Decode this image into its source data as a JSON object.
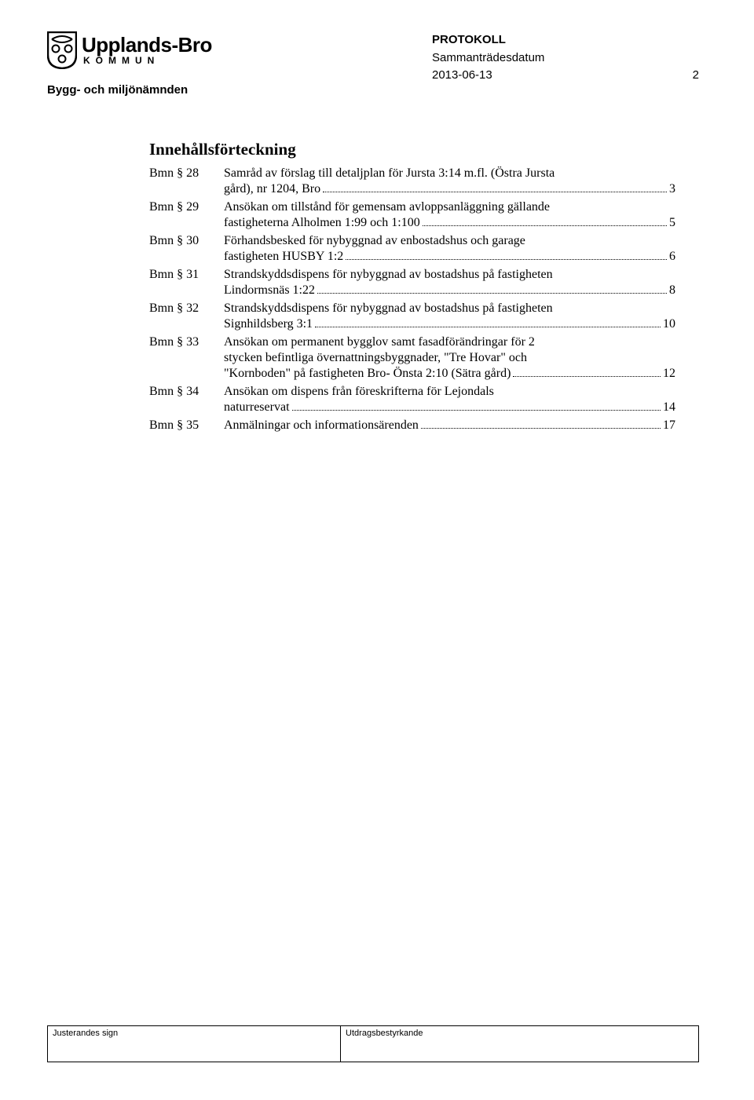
{
  "header": {
    "org_line1": "Upplands-Bro",
    "org_line2": "KOMMUN",
    "department": "Bygg- och miljönämnden",
    "protokoll": "PROTOKOLL",
    "meeting_label": "Sammanträdesdatum",
    "date": "2013-06-13",
    "page_no": "2"
  },
  "toc": {
    "title": "Innehållsförteckning",
    "rows": [
      {
        "label": "Bmn § 28",
        "lines": [
          {
            "text": "Samråd av förslag till detaljplan för Jursta 3:14 m.fl. (Östra Jursta",
            "leader": false,
            "page": ""
          },
          {
            "text": "gård), nr 1204, Bro",
            "leader": true,
            "page": "3"
          }
        ]
      },
      {
        "label": "Bmn § 29",
        "lines": [
          {
            "text": "Ansökan om tillstånd för gemensam avloppsanläggning gällande",
            "leader": false,
            "page": ""
          },
          {
            "text": "fastigheterna Alholmen 1:99 och 1:100",
            "leader": true,
            "page": "5"
          }
        ]
      },
      {
        "label": "Bmn § 30",
        "lines": [
          {
            "text": "Förhandsbesked för nybyggnad av enbostadshus och garage",
            "leader": false,
            "page": ""
          },
          {
            "text": "fastigheten HUSBY 1:2",
            "leader": true,
            "page": "6"
          }
        ]
      },
      {
        "label": "Bmn § 31",
        "lines": [
          {
            "text": "Strandskyddsdispens för nybyggnad av bostadshus på fastigheten",
            "leader": false,
            "page": ""
          },
          {
            "text": "Lindormsnäs 1:22",
            "leader": true,
            "page": "8"
          }
        ]
      },
      {
        "label": "Bmn § 32",
        "lines": [
          {
            "text": "Strandskyddsdispens för nybyggnad av bostadshus på fastigheten",
            "leader": false,
            "page": ""
          },
          {
            "text": "Signhildsberg 3:1",
            "leader": true,
            "page": "10"
          }
        ]
      },
      {
        "label": "Bmn § 33",
        "lines": [
          {
            "text": "Ansökan om permanent bygglov samt fasadförändringar för 2",
            "leader": false,
            "page": ""
          },
          {
            "text": "stycken befintliga övernattningsbyggnader, \"Tre Hovar\" och",
            "leader": false,
            "page": ""
          },
          {
            "text": "\"Kornboden\" på fastigheten Bro- Önsta 2:10 (Sätra gård)",
            "leader": true,
            "page": "12"
          }
        ]
      },
      {
        "label": "Bmn § 34",
        "lines": [
          {
            "text": "Ansökan om dispens från föreskrifterna för Lejondals",
            "leader": false,
            "page": ""
          },
          {
            "text": "naturreservat",
            "leader": true,
            "page": "14"
          }
        ]
      },
      {
        "label": "Bmn § 35",
        "lines": [
          {
            "text": "Anmälningar och informationsärenden",
            "leader": true,
            "page": "17"
          }
        ]
      }
    ]
  },
  "footer": {
    "left": "Justerandes sign",
    "right": "Utdragsbestyrkande"
  },
  "colors": {
    "text": "#000000",
    "background": "#ffffff"
  }
}
